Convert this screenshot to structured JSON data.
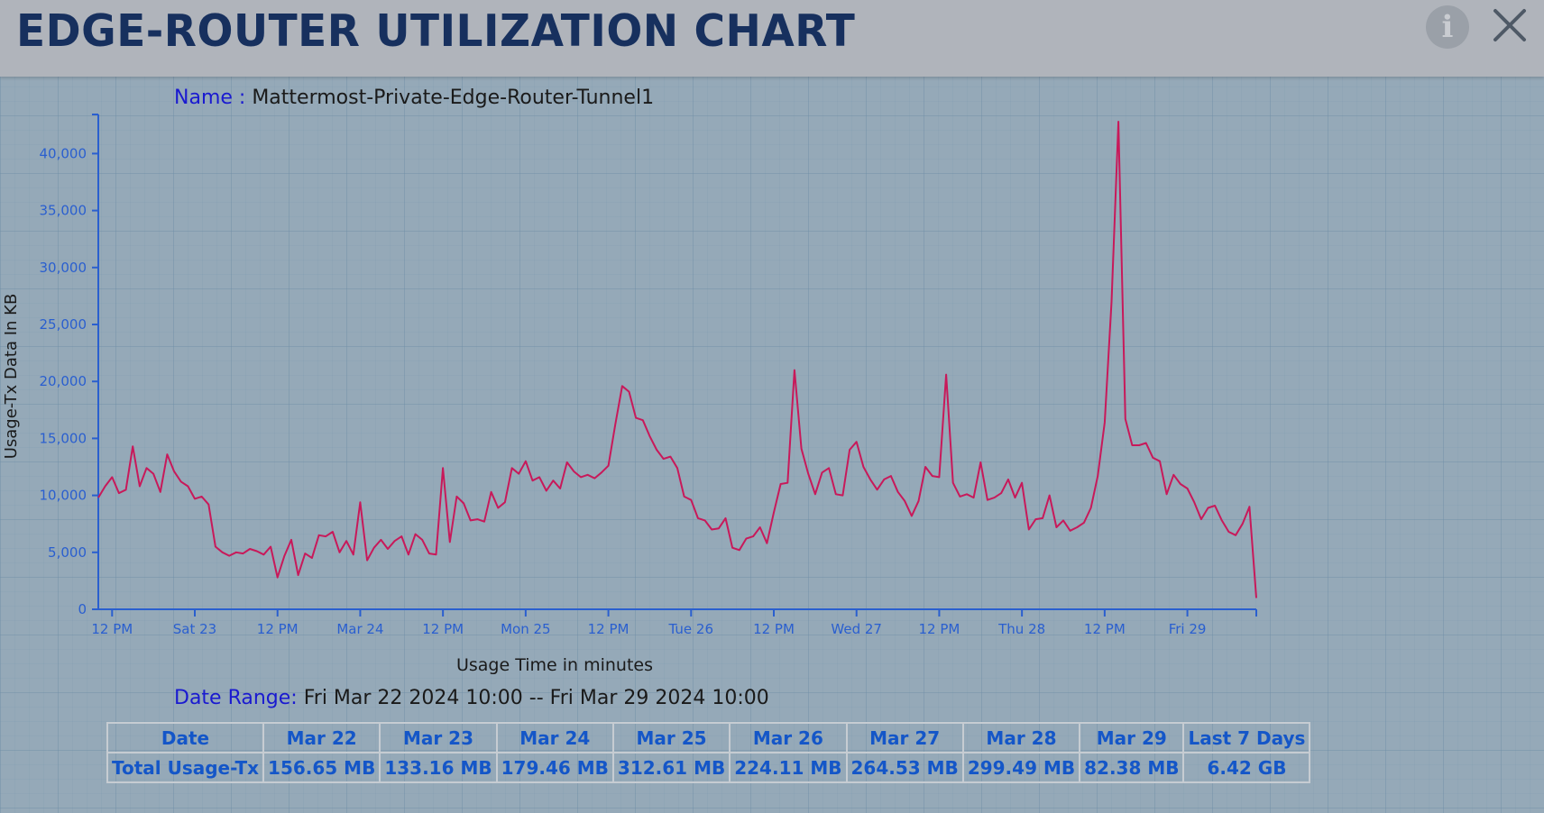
{
  "header": {
    "title": "EDGE-ROUTER UTILIZATION CHART",
    "info_icon": "info-icon",
    "close_icon": "close-icon",
    "background": "#b0b4bb",
    "title_color": "#17305e"
  },
  "name": {
    "label": "Name :",
    "value": "Mattermost-Private-Edge-Router-Tunnel1"
  },
  "date_range": {
    "label": "Date Range:",
    "value": "Fri Mar 22 2024 10:00 -- Fri Mar 29 2024 10:00"
  },
  "chart_data": {
    "type": "line",
    "xlabel": "Usage Time in minutes",
    "ylabel": "Usage-Tx Data In KB",
    "ylim": [
      0,
      42800
    ],
    "xlim_hours": [
      -2,
      166
    ],
    "y_ticks": [
      "0",
      "5,000",
      "10,000",
      "15,000",
      "20,000",
      "25,000",
      "30,000",
      "35,000",
      "40,000"
    ],
    "x_ticks": [
      "12 PM",
      "Sat 23",
      "12 PM",
      "Mar 24",
      "12 PM",
      "Mon 25",
      "12 PM",
      "Tue 26",
      "12 PM",
      "Wed 27",
      "12 PM",
      "Thu 28",
      "12 PM",
      "Fri 29"
    ],
    "line_color": "#c8195a",
    "axis_color": "#2a5fcf",
    "series": [
      {
        "x": [
          -2,
          -1,
          0,
          1,
          2,
          3,
          4,
          5,
          6,
          7,
          8,
          9,
          10,
          11,
          12,
          13,
          14,
          15,
          16,
          17,
          18,
          19,
          20,
          21,
          22,
          23,
          24,
          25,
          26,
          27,
          28,
          29,
          30,
          31,
          32,
          33,
          34,
          35,
          36,
          37,
          38,
          39,
          40,
          41,
          42,
          43,
          44,
          45,
          46,
          47,
          48,
          49,
          50,
          51,
          52,
          53,
          54,
          55,
          56,
          57,
          58,
          59,
          60,
          61,
          62,
          63,
          64,
          65,
          66,
          67,
          68,
          69,
          70,
          71,
          72,
          73,
          74,
          75,
          76,
          77,
          78,
          79,
          80,
          81,
          82,
          83,
          84,
          85,
          86,
          87,
          88,
          89,
          90,
          91,
          92,
          93,
          94,
          95,
          96,
          97,
          98,
          99,
          100,
          101,
          102,
          103,
          104,
          105,
          106,
          107,
          108,
          109,
          110,
          111,
          112,
          113,
          114,
          115,
          116,
          117,
          118,
          119,
          120,
          121,
          122,
          123,
          124,
          125,
          126,
          127,
          128,
          129,
          130,
          131,
          132,
          133,
          134,
          135,
          136,
          137,
          138,
          139,
          140,
          141,
          142,
          143,
          144,
          145,
          146,
          147,
          148,
          149,
          150,
          151,
          152,
          153,
          154,
          155,
          156,
          157,
          158,
          159,
          160,
          161,
          162,
          163,
          164,
          165,
          166
        ],
        "y": [
          9800,
          10800,
          11600,
          10200,
          10500,
          14300,
          10800,
          12400,
          11900,
          10300,
          13600,
          12100,
          11200,
          10800,
          9700,
          9900,
          9200,
          5500,
          5000,
          4700,
          5000,
          4900,
          5300,
          5100,
          4800,
          5500,
          2800,
          4700,
          6100,
          3000,
          4900,
          4500,
          6500,
          6400,
          6800,
          5000,
          6000,
          4800,
          9400,
          4300,
          5400,
          6100,
          5300,
          6000,
          6400,
          4800,
          6600,
          6100,
          4900,
          4800,
          12400,
          5900,
          9900,
          9300,
          7800,
          7900,
          7700,
          10300,
          8900,
          9400,
          12400,
          11900,
          13000,
          11300,
          11600,
          10400,
          11300,
          10600,
          12900,
          12100,
          11600,
          11800,
          11500,
          12000,
          12600,
          16200,
          19600,
          19100,
          16800,
          16600,
          15200,
          14000,
          13200,
          13400,
          12400,
          9900,
          9600,
          8000,
          7800,
          7000,
          7100,
          8000,
          5400,
          5200,
          6200,
          6400,
          7200,
          5800,
          8500,
          11000,
          11100,
          21000,
          14100,
          11900,
          10100,
          12000,
          12400,
          10100,
          10000,
          14000,
          14700,
          12500,
          11400,
          10500,
          11400,
          11700,
          10300,
          9500,
          8200,
          9500,
          12500,
          11700,
          11600,
          20600,
          11100,
          9900,
          10100,
          9800,
          12900,
          9600,
          9800,
          10200,
          11400,
          9800,
          11100,
          7000,
          7900,
          8000,
          10000,
          7200,
          7800,
          6900,
          7200,
          7600,
          8900,
          11700,
          16400,
          27000,
          42800,
          16700,
          14400,
          14400,
          14600,
          13300,
          13000,
          10100,
          11800,
          11000,
          10600,
          9400,
          7900,
          8900,
          9100,
          7800,
          6800,
          6500,
          7500,
          9000,
          1000
        ]
      }
    ]
  },
  "summary_table": {
    "header": [
      "Date",
      "Mar 22",
      "Mar 23",
      "Mar 24",
      "Mar 25",
      "Mar 26",
      "Mar 27",
      "Mar 28",
      "Mar 29",
      "Last 7 Days"
    ],
    "row": [
      "Total Usage-Tx",
      "156.65 MB",
      "133.16 MB",
      "179.46 MB",
      "312.61 MB",
      "224.11 MB",
      "264.53 MB",
      "299.49 MB",
      "82.38 MB",
      "6.42 GB"
    ]
  }
}
